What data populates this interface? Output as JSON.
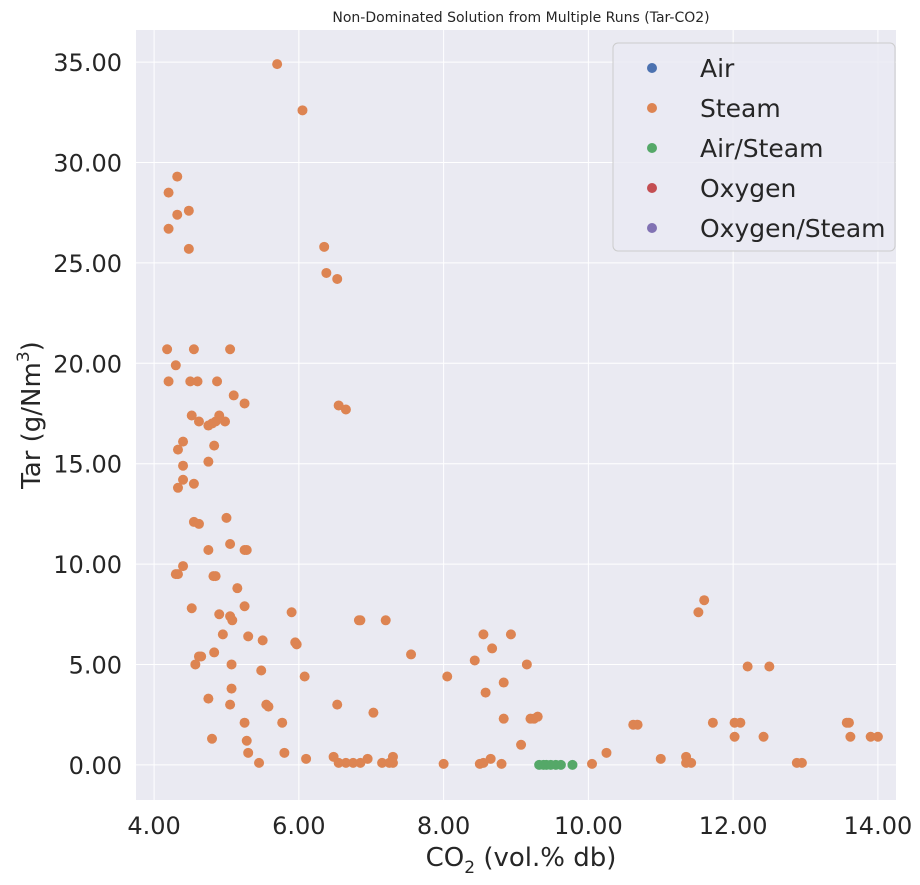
{
  "chart_data": {
    "type": "scatter",
    "title": "Non-Dominated Solution from Multiple Runs (Tar-CO2)",
    "xlabel": "CO",
    "xlabel_sub": "2",
    "xlabel_suffix": " (vol.% db)",
    "ylabel": "Tar (g/Nm",
    "ylabel_sup": "3",
    "ylabel_suffix": ")",
    "xlim": [
      3.75,
      14.25
    ],
    "ylim": [
      -1.75,
      36.6
    ],
    "xticks": [
      4,
      6,
      8,
      10,
      12,
      14
    ],
    "xtick_labels": [
      "4.00",
      "6.00",
      "8.00",
      "10.00",
      "12.00",
      "14.00"
    ],
    "yticks": [
      0,
      5,
      10,
      15,
      20,
      25,
      30,
      35
    ],
    "ytick_labels": [
      "0.00",
      "5.00",
      "10.00",
      "15.00",
      "20.00",
      "25.00",
      "30.00",
      "35.00"
    ],
    "grid": true,
    "legend_position": "top-right",
    "background": "#eaeaf2",
    "series": [
      {
        "name": "Air",
        "color": "#4c72b0",
        "points": []
      },
      {
        "name": "Steam",
        "color": "#dd8452",
        "points": [
          [
            5.7,
            34.9
          ],
          [
            6.05,
            32.6
          ],
          [
            4.32,
            29.3
          ],
          [
            4.2,
            28.5
          ],
          [
            4.48,
            27.6
          ],
          [
            4.32,
            27.4
          ],
          [
            4.2,
            26.7
          ],
          [
            4.48,
            25.7
          ],
          [
            6.35,
            25.8
          ],
          [
            6.38,
            24.5
          ],
          [
            6.53,
            24.2
          ],
          [
            4.18,
            20.7
          ],
          [
            4.55,
            20.7
          ],
          [
            5.05,
            20.7
          ],
          [
            4.3,
            19.9
          ],
          [
            4.2,
            19.1
          ],
          [
            4.5,
            19.1
          ],
          [
            4.6,
            19.1
          ],
          [
            4.87,
            19.1
          ],
          [
            5.1,
            18.4
          ],
          [
            5.25,
            18.0
          ],
          [
            6.55,
            17.9
          ],
          [
            6.65,
            17.7
          ],
          [
            4.52,
            17.4
          ],
          [
            4.9,
            17.4
          ],
          [
            4.62,
            17.1
          ],
          [
            4.85,
            17.1
          ],
          [
            4.98,
            17.1
          ],
          [
            4.8,
            17.0
          ],
          [
            4.75,
            16.9
          ],
          [
            4.4,
            16.1
          ],
          [
            4.83,
            15.9
          ],
          [
            4.33,
            15.7
          ],
          [
            4.75,
            15.1
          ],
          [
            4.4,
            14.9
          ],
          [
            4.4,
            14.2
          ],
          [
            4.55,
            14.0
          ],
          [
            4.33,
            13.8
          ],
          [
            5.0,
            12.3
          ],
          [
            4.55,
            12.1
          ],
          [
            4.62,
            12.0
          ],
          [
            5.05,
            11.0
          ],
          [
            5.25,
            10.7
          ],
          [
            4.75,
            10.7
          ],
          [
            5.28,
            10.7
          ],
          [
            4.4,
            9.9
          ],
          [
            4.33,
            9.5
          ],
          [
            4.3,
            9.5
          ],
          [
            4.82,
            9.4
          ],
          [
            4.85,
            9.4
          ],
          [
            5.15,
            8.8
          ],
          [
            4.52,
            7.8
          ],
          [
            5.25,
            7.9
          ],
          [
            4.9,
            7.5
          ],
          [
            5.05,
            7.4
          ],
          [
            5.08,
            7.2
          ],
          [
            5.9,
            7.6
          ],
          [
            6.83,
            7.2
          ],
          [
            6.85,
            7.2
          ],
          [
            7.2,
            7.2
          ],
          [
            4.95,
            6.5
          ],
          [
            5.3,
            6.4
          ],
          [
            5.5,
            6.2
          ],
          [
            5.95,
            6.1
          ],
          [
            5.97,
            6.0
          ],
          [
            8.55,
            6.5
          ],
          [
            8.93,
            6.5
          ],
          [
            8.67,
            5.8
          ],
          [
            7.55,
            5.5
          ],
          [
            4.65,
            5.4
          ],
          [
            4.62,
            5.4
          ],
          [
            4.83,
            5.6
          ],
          [
            4.57,
            5.0
          ],
          [
            5.07,
            5.0
          ],
          [
            5.48,
            4.7
          ],
          [
            8.43,
            5.2
          ],
          [
            9.15,
            5.0
          ],
          [
            6.08,
            4.4
          ],
          [
            8.05,
            4.4
          ],
          [
            5.07,
            3.8
          ],
          [
            4.75,
            3.3
          ],
          [
            8.83,
            4.1
          ],
          [
            8.58,
            3.6
          ],
          [
            5.05,
            3.0
          ],
          [
            5.55,
            3.0
          ],
          [
            5.58,
            2.9
          ],
          [
            6.53,
            3.0
          ],
          [
            7.03,
            2.6
          ],
          [
            5.25,
            2.1
          ],
          [
            5.77,
            2.1
          ],
          [
            8.83,
            2.3
          ],
          [
            9.2,
            2.3
          ],
          [
            9.3,
            2.4
          ],
          [
            9.25,
            2.3
          ],
          [
            4.8,
            1.3
          ],
          [
            5.28,
            1.2
          ],
          [
            5.3,
            0.6
          ],
          [
            5.8,
            0.6
          ],
          [
            9.07,
            1.0
          ],
          [
            10.25,
            0.6
          ],
          [
            5.45,
            0.1
          ],
          [
            6.1,
            0.3
          ],
          [
            6.48,
            0.4
          ],
          [
            6.55,
            0.1
          ],
          [
            6.65,
            0.1
          ],
          [
            6.75,
            0.1
          ],
          [
            6.85,
            0.1
          ],
          [
            6.95,
            0.3
          ],
          [
            7.15,
            0.1
          ],
          [
            7.25,
            0.1
          ],
          [
            7.3,
            0.4
          ],
          [
            7.3,
            0.1
          ],
          [
            8.0,
            0.05
          ],
          [
            8.5,
            0.05
          ],
          [
            8.55,
            0.1
          ],
          [
            8.65,
            0.3
          ],
          [
            8.8,
            0.05
          ],
          [
            10.05,
            0.05
          ],
          [
            10.62,
            2.0
          ],
          [
            10.68,
            2.0
          ],
          [
            11.0,
            0.3
          ],
          [
            11.35,
            0.4
          ],
          [
            11.35,
            0.1
          ],
          [
            11.42,
            0.1
          ],
          [
            11.52,
            7.6
          ],
          [
            11.6,
            8.2
          ],
          [
            11.72,
            2.1
          ],
          [
            12.02,
            2.1
          ],
          [
            12.1,
            2.1
          ],
          [
            12.02,
            1.4
          ],
          [
            12.2,
            4.9
          ],
          [
            12.5,
            4.9
          ],
          [
            12.42,
            1.4
          ],
          [
            12.88,
            0.1
          ],
          [
            12.95,
            0.1
          ],
          [
            13.57,
            2.1
          ],
          [
            13.6,
            2.1
          ],
          [
            13.62,
            1.4
          ],
          [
            13.9,
            1.4
          ],
          [
            14.0,
            1.4
          ]
        ]
      },
      {
        "name": "Air/Steam",
        "color": "#55a868",
        "points": [
          [
            9.32,
            0.0
          ],
          [
            9.38,
            0.0
          ],
          [
            9.42,
            0.0
          ],
          [
            9.48,
            0.0
          ],
          [
            9.55,
            0.0
          ],
          [
            9.62,
            0.0
          ],
          [
            9.78,
            0.0
          ]
        ]
      },
      {
        "name": "Oxygen",
        "color": "#c44e52",
        "points": []
      },
      {
        "name": "Oxygen/Steam",
        "color": "#8172b3",
        "points": []
      }
    ]
  }
}
